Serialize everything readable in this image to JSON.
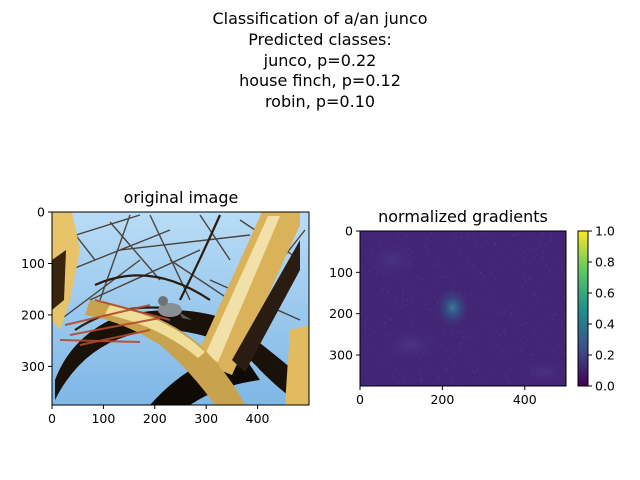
{
  "suptitle": {
    "lines": [
      "Classification of a/an junco",
      "Predicted classes:",
      "junco, p=0.22",
      "house finch, p=0.12",
      "robin, p=0.10"
    ]
  },
  "chart_data": [
    {
      "type": "image",
      "title": "original image",
      "xlabel": "",
      "ylabel": "",
      "xlim": [
        0,
        500
      ],
      "ylim": [
        375,
        0
      ],
      "xticks": [
        0,
        100,
        200,
        300,
        400
      ],
      "yticks": [
        0,
        100,
        200,
        300
      ],
      "content": "photo of a junco bird perched among tree branches against a blue sky"
    },
    {
      "type": "heatmap",
      "title": "normalized gradients",
      "xlabel": "",
      "ylabel": "",
      "xlim": [
        0,
        500
      ],
      "ylim": [
        375,
        0
      ],
      "xticks": [
        0,
        200,
        400
      ],
      "yticks": [
        0,
        100,
        200,
        300
      ],
      "colormap": "viridis",
      "colorbar": {
        "ticks": [
          0.0,
          0.2,
          0.4,
          0.6,
          0.8,
          1.0
        ],
        "labels": [
          "0.0",
          "0.2",
          "0.4",
          "0.6",
          "0.8",
          "1.0"
        ],
        "range": [
          0,
          1
        ]
      },
      "hotspot": {
        "x": 225,
        "y": 185,
        "value": 0.35
      }
    }
  ],
  "colors": {
    "viridis_low": "#440154",
    "viridis_mid": "#21918c",
    "viridis_high": "#fde725",
    "sky": "#8ec5f0",
    "branch_dark": "#1a1208",
    "branch_light": "#d9b25a"
  }
}
